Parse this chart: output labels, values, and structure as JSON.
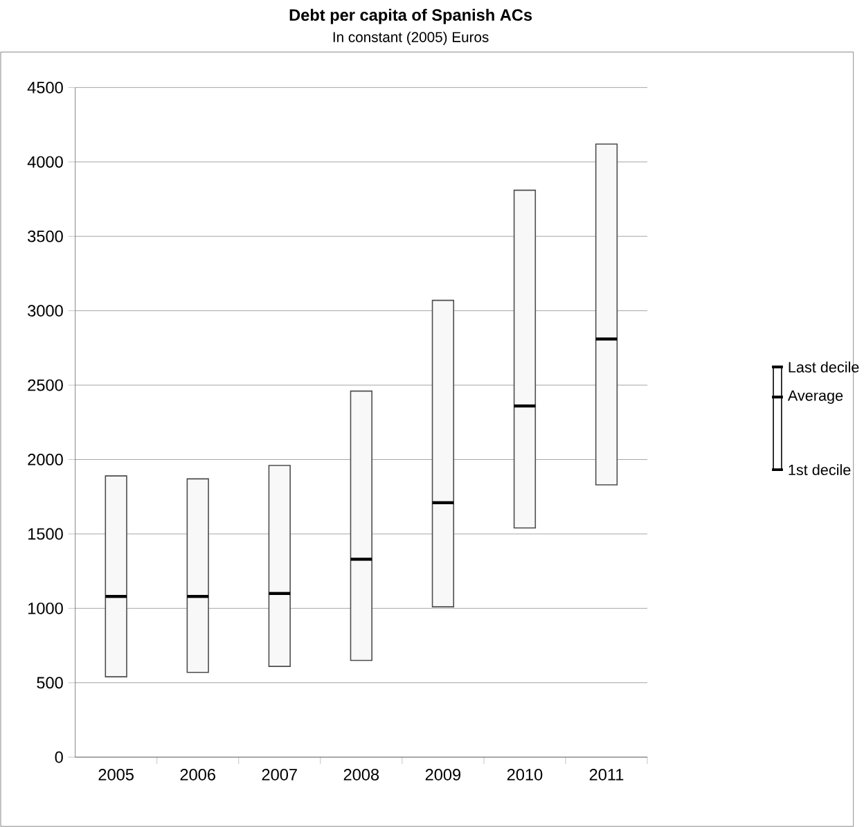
{
  "chart_data": {
    "type": "box",
    "title": "Debt per capita of Spanish ACs",
    "subtitle": "In constant (2005) Euros",
    "categories": [
      "2005",
      "2006",
      "2007",
      "2008",
      "2009",
      "2010",
      "2011"
    ],
    "color": "#f8f8f8",
    "boxes": [
      {
        "low": 540,
        "q1": 540,
        "median": 1080,
        "q3": 1890,
        "high": 1890
      },
      {
        "low": 570,
        "q1": 570,
        "median": 1080,
        "q3": 1870,
        "high": 1870
      },
      {
        "low": 610,
        "q1": 610,
        "median": 1100,
        "q3": 1960,
        "high": 1960
      },
      {
        "low": 650,
        "q1": 650,
        "median": 1330,
        "q3": 2460,
        "high": 2460
      },
      {
        "low": 1010,
        "q1": 1010,
        "median": 1710,
        "q3": 3070,
        "high": 3070
      },
      {
        "low": 1540,
        "q1": 1540,
        "median": 2360,
        "q3": 3810,
        "high": 3810
      },
      {
        "low": 1830,
        "q1": 1830,
        "median": 2810,
        "q3": 4120,
        "high": 4120
      }
    ],
    "ylim": [
      0,
      4500
    ],
    "yticks": [
      0,
      500,
      1000,
      1500,
      2000,
      2500,
      3000,
      3500,
      4000,
      4500
    ],
    "grid": "y",
    "annotations": [
      "Last decile",
      "Average",
      "1st decile"
    ]
  }
}
